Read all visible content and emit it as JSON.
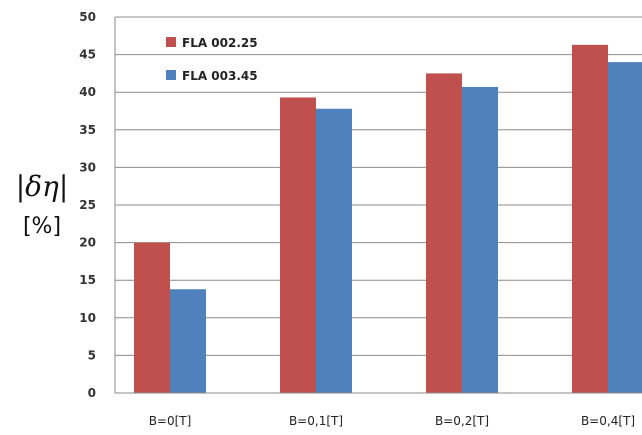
{
  "chart_data": {
    "type": "bar",
    "ylabel": "|δη|",
    "yunit": "[%]",
    "ylim": [
      0,
      50
    ],
    "ytick_step": 5,
    "grid": true,
    "legend_position": "top-left",
    "categories": [
      "B=0[T]",
      "B=0,1[T]",
      "B=0,2[T]",
      "B=0,4[T]"
    ],
    "series": [
      {
        "name": "FLA 002.25",
        "color": "#c0504d",
        "values": [
          20,
          39.3,
          42.5,
          46.3
        ]
      },
      {
        "name": "FLA 003.45",
        "color": "#4f81bd",
        "values": [
          13.8,
          37.8,
          40.7,
          44
        ]
      }
    ]
  }
}
